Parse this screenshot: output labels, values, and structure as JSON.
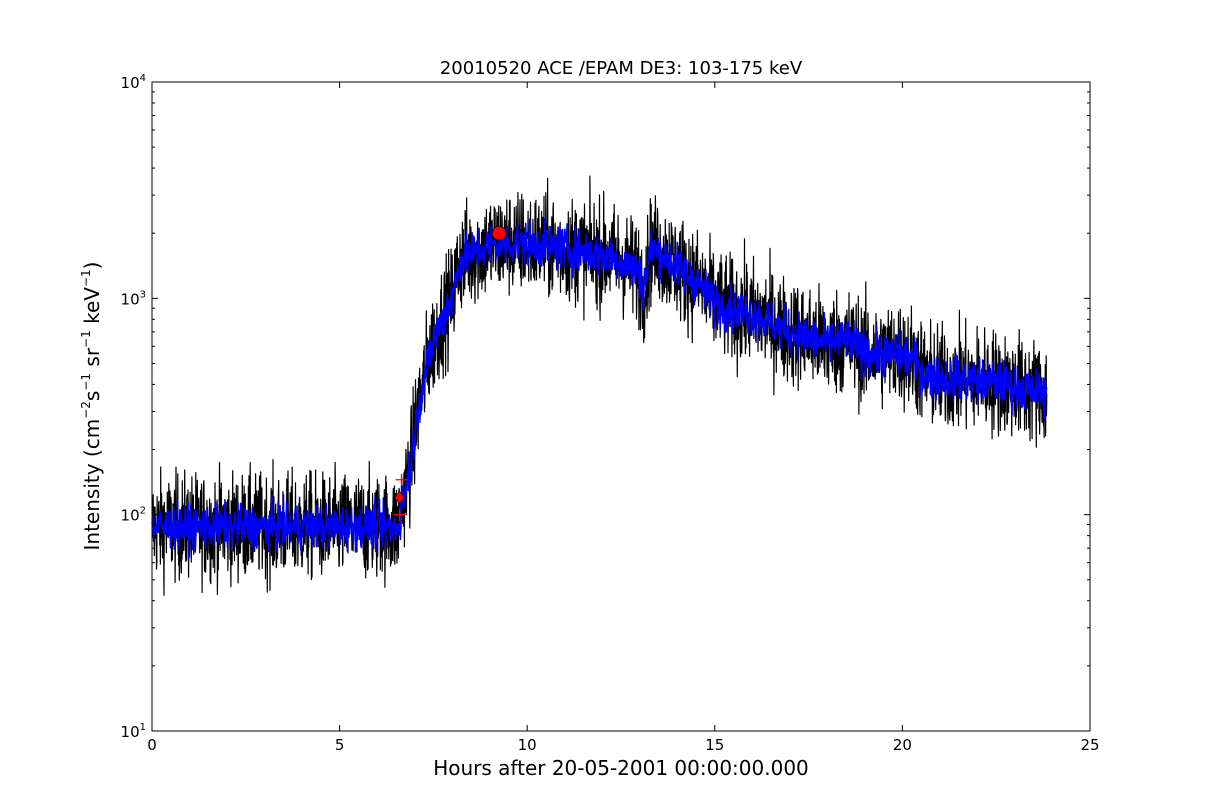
{
  "chart_data": {
    "type": "line",
    "title": "20010520 ACE /EPAM DE3: 103-175 keV",
    "xlabel": "Hours after 20-05-2001 00:00:00.000",
    "ylabel": {
      "prefix": "Intensity (cm",
      "sup1": "−2",
      "mid1": "s",
      "sup2": "−1",
      "mid2": " sr",
      "sup3": "−1",
      "mid3": " keV",
      "sup4": "−1",
      "suffix": ")"
    },
    "xlim": [
      0,
      25
    ],
    "ylim": [
      10,
      10000
    ],
    "yscale": "log",
    "grid": false,
    "x_ticks": [
      0,
      5,
      10,
      15,
      20,
      25
    ],
    "x_tick_labels": [
      "0",
      "5",
      "10",
      "15",
      "20",
      "25"
    ],
    "y_ticks": [
      10,
      100,
      1000,
      10000
    ],
    "y_tick_labels": [
      {
        "base": "10",
        "exp": "1"
      },
      {
        "base": "10",
        "exp": "2"
      },
      {
        "base": "10",
        "exp": "3"
      },
      {
        "base": "10",
        "exp": "4"
      }
    ],
    "series": [
      {
        "color": "#000000",
        "style": "raw",
        "noise_dex": 0.12,
        "x": [
          0,
          6.55,
          6.6,
          6.7,
          6.8,
          6.9,
          7.0,
          7.1,
          7.2,
          7.4,
          7.6,
          7.8,
          8.0,
          8.2,
          8.6,
          9.0,
          9.5,
          10.0,
          10.5,
          11.0,
          11.5,
          12.0,
          12.5,
          13.0,
          13.1,
          13.3,
          13.6,
          14.0,
          14.5,
          15.0,
          15.5,
          16.0,
          17.0,
          18.0,
          18.5,
          19.0,
          20.0,
          20.3,
          20.6,
          21.0,
          22.0,
          22.5,
          23.0,
          23.85
        ],
        "y": [
          88,
          88,
          100,
          120,
          145,
          175,
          230,
          320,
          380,
          560,
          700,
          860,
          1000,
          1500,
          1650,
          1750,
          1800,
          1800,
          1750,
          1700,
          1650,
          1600,
          1500,
          1300,
          1100,
          1700,
          1600,
          1400,
          1200,
          950,
          880,
          850,
          700,
          620,
          640,
          560,
          550,
          520,
          440,
          430,
          420,
          410,
          390,
          360
        ]
      },
      {
        "color": "#0000ff",
        "style": "smooth",
        "noise_dex": 0.05,
        "x": [
          0,
          6.55,
          6.6,
          6.7,
          6.8,
          6.9,
          7.0,
          7.1,
          7.2,
          7.4,
          7.6,
          7.8,
          8.0,
          8.2,
          8.6,
          9.0,
          9.5,
          10.0,
          10.5,
          11.0,
          11.5,
          12.0,
          12.5,
          13.0,
          13.1,
          13.3,
          13.6,
          14.0,
          14.5,
          15.0,
          15.5,
          16.0,
          17.0,
          18.0,
          18.5,
          19.0,
          20.0,
          20.3,
          20.6,
          21.0,
          22.0,
          22.5,
          23.0,
          23.85
        ],
        "y": [
          88,
          88,
          100,
          120,
          145,
          175,
          230,
          320,
          380,
          560,
          700,
          860,
          1000,
          1500,
          1650,
          1750,
          1800,
          1800,
          1750,
          1700,
          1650,
          1600,
          1500,
          1300,
          1100,
          1700,
          1600,
          1400,
          1200,
          950,
          880,
          850,
          700,
          620,
          640,
          560,
          550,
          520,
          440,
          430,
          420,
          410,
          390,
          360
        ]
      }
    ],
    "markers": [
      {
        "type": "plus",
        "x": 6.6,
        "y": 100,
        "color": "#ff0000"
      },
      {
        "type": "plus",
        "x": 6.65,
        "y": 145,
        "color": "#ff0000"
      },
      {
        "type": "diamond",
        "x": 6.6,
        "y": 120,
        "color": "#ff0000"
      },
      {
        "type": "circle",
        "x": 9.25,
        "y": 2000,
        "color": "#ff0000"
      }
    ]
  }
}
